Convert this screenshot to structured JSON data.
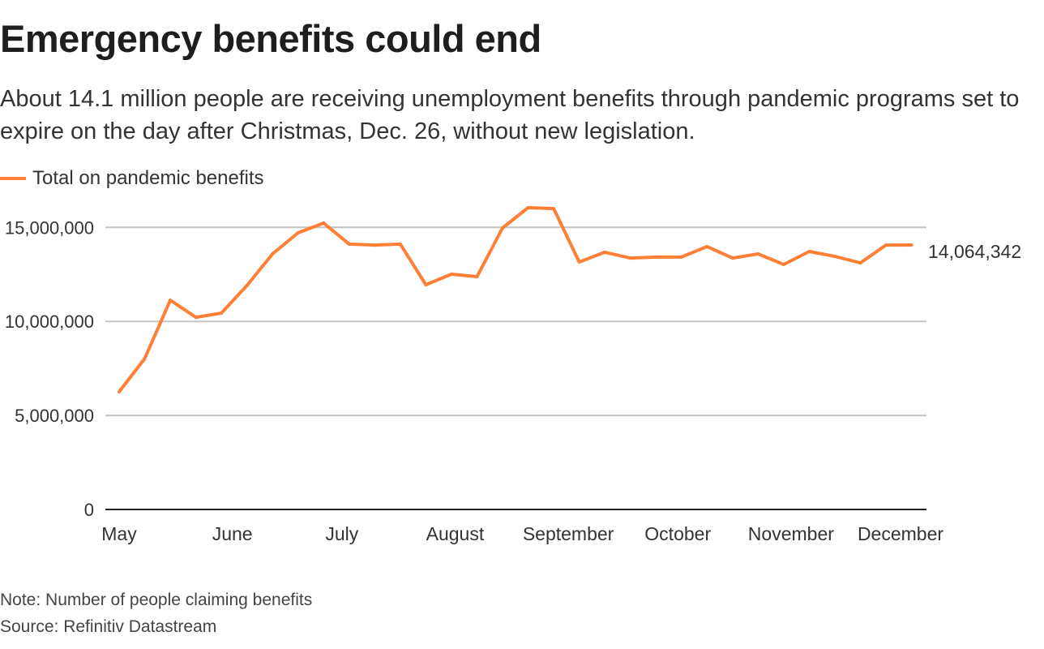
{
  "title": "Emergency benefits could end",
  "subtitle": "About 14.1 million people are receiving unemployment benefits through pandemic programs set to expire on the day after Christmas, Dec. 26, without new legislation.",
  "note": "Note: Number of people claiming benefits",
  "source": "Source: Refinitiv Datastream",
  "chart_data": {
    "type": "line",
    "title": "Emergency benefits could end",
    "xlabel": "",
    "ylabel": "",
    "ylim": [
      0,
      16500000
    ],
    "grid": true,
    "legend_placement": "top-left",
    "y_ticks": [
      0,
      5000000,
      10000000,
      15000000
    ],
    "y_tick_labels": [
      "0",
      "5,000,000",
      "10,000,000",
      "15,000,000"
    ],
    "x_ticks": [
      "2020-05-01",
      "2020-06-01",
      "2020-07-01",
      "2020-08-01",
      "2020-09-01",
      "2020-10-01",
      "2020-11-01",
      "2020-12-01"
    ],
    "x_tick_labels": [
      "May",
      "June",
      "July",
      "August",
      "September",
      "October",
      "November",
      "December"
    ],
    "end_label": "14,064,342",
    "series": [
      {
        "name": "Total on pandemic benefits",
        "color": "#ff7f36",
        "x": [
          "2020-05-01",
          "2020-05-08",
          "2020-05-15",
          "2020-05-22",
          "2020-05-29",
          "2020-06-05",
          "2020-06-12",
          "2020-06-19",
          "2020-06-26",
          "2020-07-03",
          "2020-07-10",
          "2020-07-17",
          "2020-07-24",
          "2020-07-31",
          "2020-08-07",
          "2020-08-14",
          "2020-08-21",
          "2020-08-28",
          "2020-09-04",
          "2020-09-11",
          "2020-09-18",
          "2020-09-25",
          "2020-10-02",
          "2020-10-09",
          "2020-10-16",
          "2020-10-23",
          "2020-10-30",
          "2020-11-06",
          "2020-11-13",
          "2020-11-20",
          "2020-11-27",
          "2020-12-04"
        ],
        "values": [
          6260000,
          8020000,
          11130000,
          10220000,
          10440000,
          11910000,
          13590000,
          14710000,
          15230000,
          14110000,
          14060000,
          14110000,
          11950000,
          12510000,
          12380000,
          14970000,
          16050000,
          16000000,
          13160000,
          13680000,
          13370000,
          13420000,
          13420000,
          13980000,
          13370000,
          13590000,
          13030000,
          13720000,
          13460000,
          13110000,
          14060000,
          14064342
        ]
      }
    ]
  }
}
